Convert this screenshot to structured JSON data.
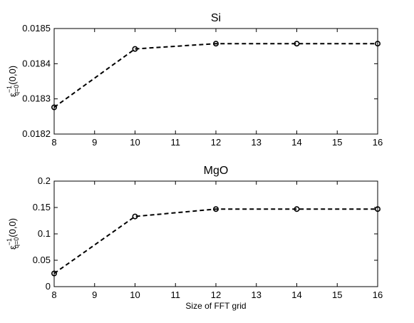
{
  "chart_data": [
    {
      "type": "line",
      "title": "Si",
      "xlabel": "",
      "ylabel": {
        "base": "ε",
        "sup": "−1",
        "sub": "q=0",
        "suffix": "(0,0)"
      },
      "x": [
        8,
        10,
        12,
        14,
        16
      ],
      "series": [
        {
          "values": [
            0.018276,
            0.018442,
            0.018457,
            0.018457,
            0.018457
          ],
          "marker": "circle",
          "line": "dashed",
          "color": "#000000"
        }
      ],
      "xlim": [
        8,
        16
      ],
      "ylim": [
        0.0182,
        0.0185
      ],
      "xticks": [
        8,
        9,
        10,
        11,
        12,
        13,
        14,
        15,
        16
      ],
      "yticks": [
        0.0182,
        0.0183,
        0.0184,
        0.0185
      ],
      "ytick_labels": [
        "0.0182",
        "0.0183",
        "0.0184",
        "0.0185"
      ],
      "grid": false
    },
    {
      "type": "line",
      "title": "MgO",
      "xlabel": "Size of FFT grid",
      "ylabel": {
        "base": "ε",
        "sup": "−1",
        "sub": "q=0",
        "suffix": "(0,0)"
      },
      "x": [
        8,
        10,
        12,
        14,
        16
      ],
      "series": [
        {
          "values": [
            0.025,
            0.133,
            0.147,
            0.147,
            0.147
          ],
          "marker": "circle",
          "line": "dashed",
          "color": "#000000"
        }
      ],
      "xlim": [
        8,
        16
      ],
      "ylim": [
        0,
        0.2
      ],
      "xticks": [
        8,
        9,
        10,
        11,
        12,
        13,
        14,
        15,
        16
      ],
      "yticks": [
        0,
        0.05,
        0.1,
        0.15,
        0.2
      ],
      "ytick_labels": [
        "0",
        "0.05",
        "0.1",
        "0.15",
        "0.2"
      ],
      "grid": false
    }
  ]
}
